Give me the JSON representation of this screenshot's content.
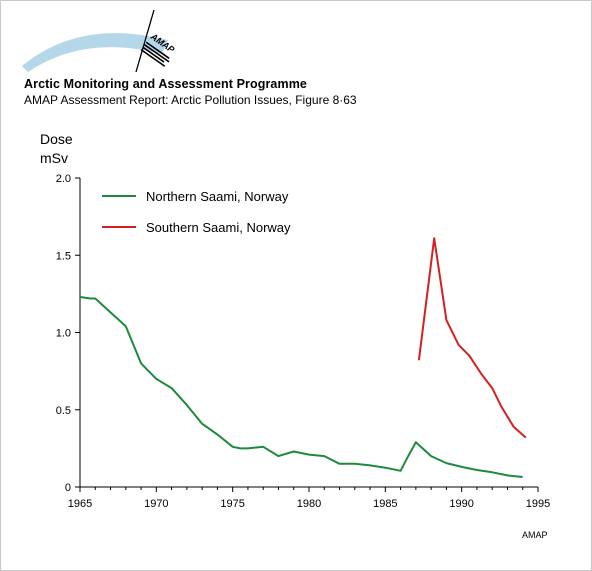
{
  "header": {
    "organization": "Arctic Monitoring and Assessment Programme",
    "report": "AMAP Assessment Report: Arctic Pollution Issues, Figure 8·63",
    "logo_text": "AMAP",
    "logo_color": "#b5d7ea"
  },
  "credit": "AMAP",
  "chart_data": {
    "type": "line",
    "title": "",
    "xlabel": "",
    "ylabel": "Dose",
    "ylabel_unit": "mSv",
    "xlim": [
      1965,
      1995
    ],
    "ylim": [
      0,
      2.0
    ],
    "x_ticks": [
      1965,
      1970,
      1975,
      1980,
      1985,
      1990,
      1995
    ],
    "x_tick_labels": [
      "1965",
      "1970",
      "1975",
      "1980",
      "1985",
      "1990",
      "1995"
    ],
    "y_ticks": [
      0,
      0.5,
      1.0,
      1.5,
      2.0
    ],
    "y_tick_labels": [
      "0",
      "0.5",
      "1.0",
      "1.5",
      "2.0"
    ],
    "grid": false,
    "legend_position": "top-left",
    "series": [
      {
        "name": "Northern Saami, Norway",
        "color": "#1e8a3e",
        "points": [
          [
            1965,
            1.23
          ],
          [
            1965.7,
            1.22
          ],
          [
            1966,
            1.22
          ],
          [
            1967,
            1.13
          ],
          [
            1968,
            1.04
          ],
          [
            1969,
            0.8
          ],
          [
            1970,
            0.7
          ],
          [
            1971,
            0.64
          ],
          [
            1972,
            0.53
          ],
          [
            1973,
            0.41
          ],
          [
            1974,
            0.34
          ],
          [
            1975,
            0.26
          ],
          [
            1975.5,
            0.25
          ],
          [
            1976,
            0.25
          ],
          [
            1977,
            0.26
          ],
          [
            1978,
            0.2
          ],
          [
            1979,
            0.23
          ],
          [
            1980,
            0.21
          ],
          [
            1981,
            0.2
          ],
          [
            1982,
            0.15
          ],
          [
            1983,
            0.15
          ],
          [
            1984,
            0.14
          ],
          [
            1985,
            0.125
          ],
          [
            1986,
            0.105
          ],
          [
            1986.5,
            0.2
          ],
          [
            1987,
            0.29
          ],
          [
            1988,
            0.2
          ],
          [
            1989,
            0.155
          ],
          [
            1990,
            0.13
          ],
          [
            1991,
            0.11
          ],
          [
            1992,
            0.095
          ],
          [
            1993,
            0.075
          ],
          [
            1994,
            0.065
          ]
        ]
      },
      {
        "name": "Southern Saami, Norway",
        "color": "#d42020",
        "points": [
          [
            1987.2,
            0.82
          ],
          [
            1988.2,
            1.61
          ],
          [
            1989,
            1.08
          ],
          [
            1989.8,
            0.92
          ],
          [
            1990.5,
            0.85
          ],
          [
            1991.3,
            0.73
          ],
          [
            1992,
            0.64
          ],
          [
            1992.6,
            0.52
          ],
          [
            1993.4,
            0.39
          ],
          [
            1994.2,
            0.32
          ]
        ]
      }
    ]
  }
}
